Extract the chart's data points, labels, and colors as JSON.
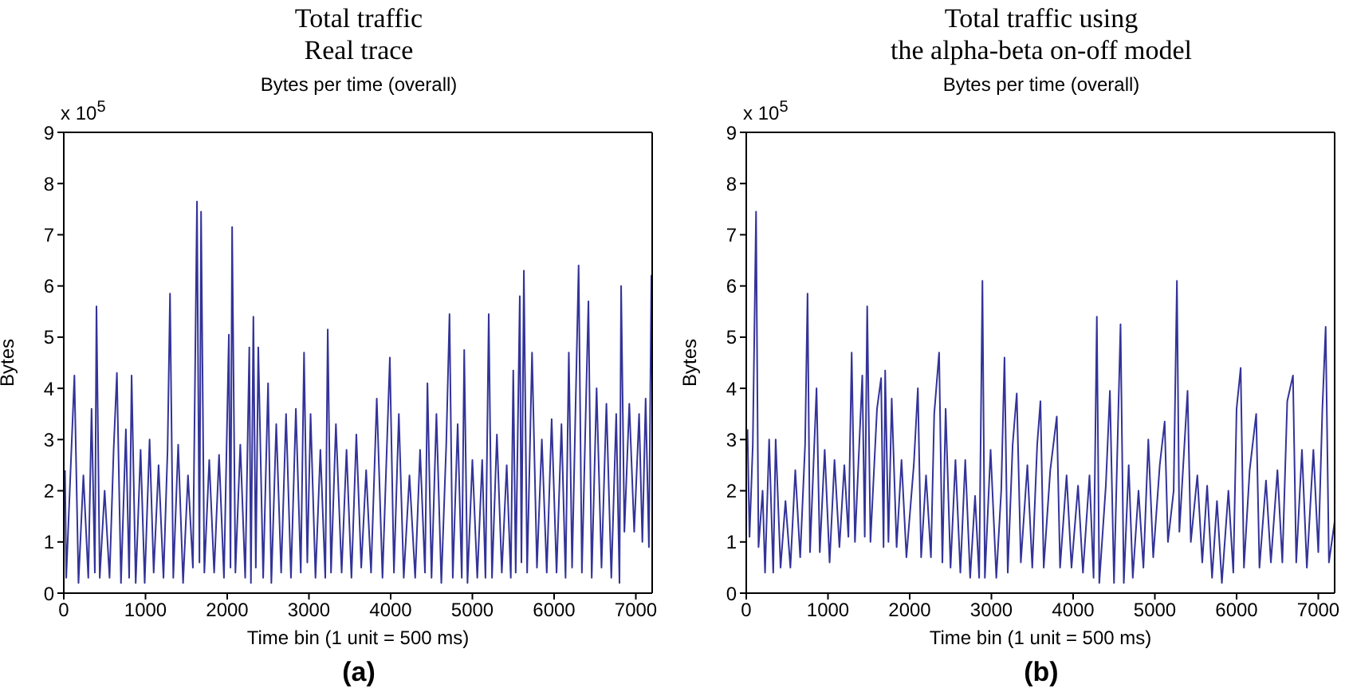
{
  "chart_data": [
    {
      "type": "line",
      "title": "Total traffic\nReal trace",
      "subtitle": "Bytes per time (overall)",
      "xlabel": "Time bin (1 unit = 500 ms)",
      "ylabel": "Bytes",
      "annotations": [
        "x 10$^{5}$",
        "(a)"
      ],
      "color": "#333399",
      "line_style": "solid",
      "marker": "none",
      "xlim": [
        0,
        7200
      ],
      "xticks": [
        0,
        1000,
        2000,
        3000,
        4000,
        5000,
        6000,
        7000
      ],
      "ylim": [
        0,
        9
      ],
      "yticks": [
        0,
        1,
        2,
        3,
        4,
        5,
        6,
        7,
        8,
        9
      ],
      "x": [
        15,
        30,
        130,
        180,
        240,
        300,
        340,
        380,
        400,
        440,
        500,
        560,
        610,
        650,
        700,
        760,
        800,
        830,
        880,
        940,
        990,
        1050,
        1100,
        1160,
        1220,
        1270,
        1300,
        1340,
        1400,
        1460,
        1520,
        1580,
        1630,
        1660,
        1680,
        1720,
        1780,
        1840,
        1900,
        1960,
        2020,
        2040,
        2060,
        2100,
        2160,
        2220,
        2270,
        2290,
        2320,
        2350,
        2380,
        2440,
        2500,
        2540,
        2600,
        2660,
        2720,
        2780,
        2840,
        2900,
        2940,
        2980,
        3020,
        3080,
        3140,
        3200,
        3230,
        3270,
        3330,
        3400,
        3460,
        3520,
        3580,
        3640,
        3700,
        3760,
        3830,
        3900,
        3990,
        4040,
        4100,
        4160,
        4230,
        4300,
        4360,
        4420,
        4450,
        4500,
        4560,
        4620,
        4680,
        4720,
        4760,
        4820,
        4870,
        4900,
        4940,
        5000,
        5060,
        5120,
        5160,
        5200,
        5240,
        5300,
        5360,
        5420,
        5470,
        5500,
        5530,
        5580,
        5600,
        5630,
        5670,
        5730,
        5790,
        5850,
        5910,
        5970,
        6030,
        6090,
        6140,
        6180,
        6220,
        6300,
        6340,
        6420,
        6460,
        6520,
        6580,
        6640,
        6700,
        6760,
        6800,
        6820,
        6860,
        6920,
        6980,
        7040,
        7080,
        7120,
        7160,
        7190,
        7200
      ],
      "values": [
        2.4,
        0.3,
        4.25,
        0.2,
        2.3,
        0.3,
        3.6,
        0.4,
        5.6,
        0.3,
        2.0,
        0.3,
        2.8,
        4.3,
        0.2,
        3.2,
        0.3,
        4.25,
        0.2,
        2.8,
        0.2,
        3.0,
        0.4,
        2.5,
        0.3,
        2.8,
        5.85,
        0.3,
        2.9,
        0.2,
        2.3,
        0.5,
        7.65,
        0.6,
        7.45,
        0.4,
        2.6,
        0.4,
        2.7,
        0.3,
        5.05,
        0.5,
        7.15,
        0.4,
        2.9,
        0.3,
        4.8,
        0.2,
        5.4,
        0.5,
        4.8,
        0.3,
        4.1,
        0.2,
        3.3,
        0.4,
        3.5,
        0.3,
        3.6,
        0.4,
        4.7,
        0.6,
        3.5,
        0.3,
        2.8,
        0.3,
        5.15,
        0.4,
        3.3,
        0.4,
        2.8,
        0.3,
        3.1,
        0.5,
        2.4,
        0.4,
        3.8,
        0.3,
        4.6,
        0.4,
        3.5,
        0.3,
        2.3,
        0.3,
        2.8,
        0.4,
        4.1,
        0.3,
        3.5,
        0.2,
        2.9,
        5.45,
        0.3,
        3.3,
        0.3,
        4.75,
        0.2,
        2.6,
        0.3,
        2.6,
        0.3,
        5.45,
        0.3,
        3.1,
        0.4,
        2.5,
        0.3,
        4.35,
        0.4,
        5.8,
        0.6,
        6.3,
        0.4,
        4.7,
        0.5,
        3.0,
        0.4,
        3.4,
        0.4,
        3.3,
        0.3,
        4.7,
        0.5,
        6.4,
        0.4,
        5.7,
        0.3,
        4.0,
        0.5,
        3.7,
        0.3,
        3.5,
        0.2,
        6.0,
        1.2,
        3.7,
        1.2,
        3.5,
        1.0,
        3.8,
        0.9,
        6.2,
        4.1
      ]
    },
    {
      "type": "line",
      "title": "Total traffic using\nthe alpha-beta on-off model",
      "subtitle": "Bytes per time (overall)",
      "xlabel": "Time bin (1 unit = 500 ms)",
      "ylabel": "Bytes",
      "annotations": [
        "x 10$^{5}$",
        "(b)"
      ],
      "color": "#333399",
      "line_style": "solid",
      "marker": "none",
      "xlim": [
        0,
        7200
      ],
      "xticks": [
        0,
        1000,
        2000,
        3000,
        4000,
        5000,
        6000,
        7000
      ],
      "ylim": [
        0,
        9
      ],
      "yticks": [
        0,
        1,
        2,
        3,
        4,
        5,
        6,
        7,
        8,
        9
      ],
      "x": [
        15,
        40,
        80,
        120,
        150,
        200,
        230,
        280,
        330,
        360,
        420,
        480,
        540,
        600,
        660,
        720,
        750,
        780,
        860,
        900,
        960,
        1020,
        1080,
        1140,
        1200,
        1250,
        1290,
        1330,
        1420,
        1450,
        1480,
        1520,
        1600,
        1650,
        1680,
        1700,
        1740,
        1780,
        1840,
        1900,
        1960,
        2050,
        2100,
        2140,
        2200,
        2260,
        2300,
        2360,
        2400,
        2440,
        2500,
        2560,
        2620,
        2680,
        2740,
        2800,
        2850,
        2890,
        2920,
        2990,
        3060,
        3120,
        3160,
        3200,
        3260,
        3310,
        3360,
        3440,
        3500,
        3560,
        3600,
        3640,
        3720,
        3800,
        3840,
        3920,
        3980,
        4060,
        4120,
        4200,
        4250,
        4290,
        4320,
        4400,
        4450,
        4500,
        4580,
        4620,
        4680,
        4730,
        4800,
        4860,
        4920,
        4980,
        5060,
        5120,
        5160,
        5230,
        5270,
        5300,
        5400,
        5440,
        5520,
        5580,
        5640,
        5700,
        5760,
        5820,
        5900,
        5960,
        6000,
        6050,
        6090,
        6160,
        6240,
        6280,
        6360,
        6420,
        6500,
        6560,
        6620,
        6690,
        6730,
        6800,
        6860,
        6940,
        7000,
        7050,
        7090,
        7130,
        7200
      ],
      "values": [
        3.2,
        1.1,
        2.9,
        7.45,
        0.9,
        2.0,
        0.4,
        3.0,
        0.4,
        3.0,
        0.5,
        1.8,
        0.5,
        2.4,
        0.7,
        2.9,
        5.85,
        0.8,
        4.0,
        0.8,
        2.8,
        0.6,
        2.6,
        0.9,
        2.5,
        1.1,
        4.7,
        1.0,
        4.25,
        1.1,
        5.6,
        1.0,
        3.6,
        4.2,
        0.9,
        4.35,
        1.0,
        3.8,
        0.9,
        2.6,
        0.7,
        2.5,
        4.0,
        0.7,
        2.3,
        0.7,
        3.5,
        4.7,
        0.6,
        3.6,
        0.5,
        2.6,
        0.4,
        2.6,
        0.3,
        1.9,
        0.3,
        6.1,
        0.3,
        2.8,
        0.3,
        2.0,
        4.6,
        0.4,
        2.9,
        3.9,
        0.6,
        2.5,
        0.5,
        2.9,
        3.75,
        0.5,
        2.4,
        3.45,
        0.5,
        2.3,
        0.5,
        2.1,
        0.4,
        2.3,
        0.3,
        5.4,
        0.2,
        2.1,
        3.95,
        0.2,
        5.25,
        0.2,
        2.5,
        0.3,
        2.0,
        0.5,
        3.0,
        0.7,
        2.5,
        3.35,
        1.0,
        2.0,
        6.1,
        1.2,
        3.95,
        1.0,
        2.3,
        0.6,
        2.1,
        0.3,
        1.8,
        0.2,
        2.0,
        0.4,
        3.6,
        4.4,
        0.5,
        2.4,
        3.5,
        0.5,
        2.2,
        0.6,
        2.4,
        0.6,
        3.75,
        4.25,
        0.6,
        2.8,
        0.5,
        2.8,
        0.8,
        3.6,
        5.2,
        0.6,
        1.4
      ]
    }
  ]
}
